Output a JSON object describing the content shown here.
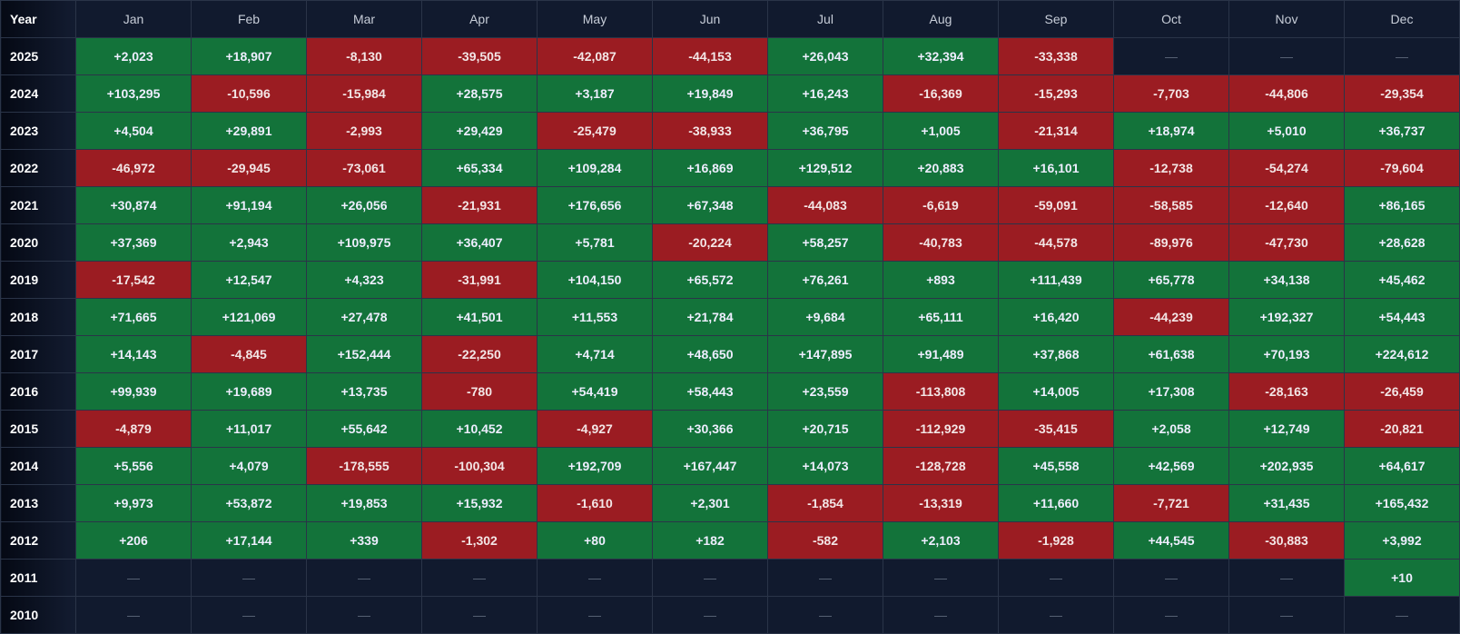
{
  "colors": {
    "positive": "#13733a",
    "negative": "#9b1c22",
    "empty": "#111a2e"
  },
  "header": {
    "year": "Year",
    "months": [
      "Jan",
      "Feb",
      "Mar",
      "Apr",
      "May",
      "Jun",
      "Jul",
      "Aug",
      "Sep",
      "Oct",
      "Nov",
      "Dec"
    ]
  },
  "rows": [
    {
      "year": "2025",
      "values": [
        "+2,023",
        "+18,907",
        "-8,130",
        "-39,505",
        "-42,087",
        "-44,153",
        "+26,043",
        "+32,394",
        "-33,338",
        "—",
        "—",
        "—"
      ]
    },
    {
      "year": "2024",
      "values": [
        "+103,295",
        "-10,596",
        "-15,984",
        "+28,575",
        "+3,187",
        "+19,849",
        "+16,243",
        "-16,369",
        "-15,293",
        "-7,703",
        "-44,806",
        "-29,354"
      ]
    },
    {
      "year": "2023",
      "values": [
        "+4,504",
        "+29,891",
        "-2,993",
        "+29,429",
        "-25,479",
        "-38,933",
        "+36,795",
        "+1,005",
        "-21,314",
        "+18,974",
        "+5,010",
        "+36,737"
      ]
    },
    {
      "year": "2022",
      "values": [
        "-46,972",
        "-29,945",
        "-73,061",
        "+65,334",
        "+109,284",
        "+16,869",
        "+129,512",
        "+20,883",
        "+16,101",
        "-12,738",
        "-54,274",
        "-79,604"
      ]
    },
    {
      "year": "2021",
      "values": [
        "+30,874",
        "+91,194",
        "+26,056",
        "-21,931",
        "+176,656",
        "+67,348",
        "-44,083",
        "-6,619",
        "-59,091",
        "-58,585",
        "-12,640",
        "+86,165"
      ]
    },
    {
      "year": "2020",
      "values": [
        "+37,369",
        "+2,943",
        "+109,975",
        "+36,407",
        "+5,781",
        "-20,224",
        "+58,257",
        "-40,783",
        "-44,578",
        "-89,976",
        "-47,730",
        "+28,628"
      ]
    },
    {
      "year": "2019",
      "values": [
        "-17,542",
        "+12,547",
        "+4,323",
        "-31,991",
        "+104,150",
        "+65,572",
        "+76,261",
        "+893",
        "+111,439",
        "+65,778",
        "+34,138",
        "+45,462"
      ]
    },
    {
      "year": "2018",
      "values": [
        "+71,665",
        "+121,069",
        "+27,478",
        "+41,501",
        "+11,553",
        "+21,784",
        "+9,684",
        "+65,111",
        "+16,420",
        "-44,239",
        "+192,327",
        "+54,443"
      ]
    },
    {
      "year": "2017",
      "values": [
        "+14,143",
        "-4,845",
        "+152,444",
        "-22,250",
        "+4,714",
        "+48,650",
        "+147,895",
        "+91,489",
        "+37,868",
        "+61,638",
        "+70,193",
        "+224,612"
      ]
    },
    {
      "year": "2016",
      "values": [
        "+99,939",
        "+19,689",
        "+13,735",
        "-780",
        "+54,419",
        "+58,443",
        "+23,559",
        "-113,808",
        "+14,005",
        "+17,308",
        "-28,163",
        "-26,459"
      ]
    },
    {
      "year": "2015",
      "values": [
        "-4,879",
        "+11,017",
        "+55,642",
        "+10,452",
        "-4,927",
        "+30,366",
        "+20,715",
        "-112,929",
        "-35,415",
        "+2,058",
        "+12,749",
        "-20,821"
      ]
    },
    {
      "year": "2014",
      "values": [
        "+5,556",
        "+4,079",
        "-178,555",
        "-100,304",
        "+192,709",
        "+167,447",
        "+14,073",
        "-128,728",
        "+45,558",
        "+42,569",
        "+202,935",
        "+64,617"
      ]
    },
    {
      "year": "2013",
      "values": [
        "+9,973",
        "+53,872",
        "+19,853",
        "+15,932",
        "-1,610",
        "+2,301",
        "-1,854",
        "-13,319",
        "+11,660",
        "-7,721",
        "+31,435",
        "+165,432"
      ]
    },
    {
      "year": "2012",
      "values": [
        "+206",
        "+17,144",
        "+339",
        "-1,302",
        "+80",
        "+182",
        "-582",
        "+2,103",
        "-1,928",
        "+44,545",
        "-30,883",
        "+3,992"
      ]
    },
    {
      "year": "2011",
      "values": [
        "—",
        "—",
        "—",
        "—",
        "—",
        "—",
        "—",
        "—",
        "—",
        "—",
        "—",
        "+10"
      ]
    },
    {
      "year": "2010",
      "values": [
        "—",
        "—",
        "—",
        "—",
        "—",
        "—",
        "—",
        "—",
        "—",
        "—",
        "—",
        "—"
      ]
    }
  ]
}
